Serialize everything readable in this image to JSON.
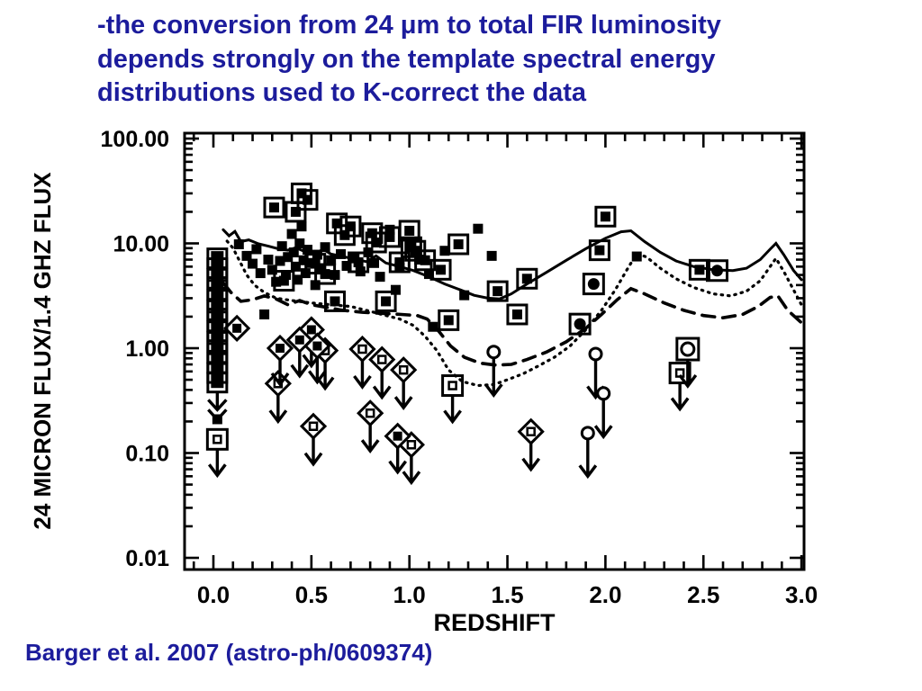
{
  "slide": {
    "title": "-the conversion from 24 μm to total FIR luminosity\ndepends strongly on the template spectral energy\ndistributions used to K-correct the data",
    "citation": "Barger et al. 2007 (astro-ph/0609374)",
    "text_color": "#1c1c9c",
    "background": "#ffffff"
  },
  "chart_data": {
    "type": "scatter",
    "title": "",
    "xlabel": "REDSHIFT",
    "ylabel": "24 MICRON FLUX/1.4 GHZ FLUX",
    "x_range": [
      -0.147,
      3.013
    ],
    "y_log_range": [
      0.0078,
      112
    ],
    "x_ticks": [
      0.0,
      0.5,
      1.0,
      1.5,
      2.0,
      2.5,
      3.0
    ],
    "x_tick_labels": [
      "0.0",
      "0.5",
      "1.0",
      "1.5",
      "2.0",
      "2.5",
      "3.0"
    ],
    "x_minor_step": 0.1,
    "y_ticks": [
      100,
      10,
      1,
      0.1,
      0.01
    ],
    "y_tick_labels": [
      "100.00",
      "10.00",
      "1.00",
      "0.10",
      "0.01"
    ],
    "grid": false,
    "legend": "none",
    "ink_color": "#000000",
    "series": [
      {
        "name": "filled-squares",
        "symbol": "filled_square",
        "points": [
          [
            0.13,
            9.8
          ],
          [
            0.17,
            7.6
          ],
          [
            0.2,
            6.4
          ],
          [
            0.22,
            8.8
          ],
          [
            0.24,
            5.2
          ],
          [
            0.26,
            2.1
          ],
          [
            0.28,
            7.0
          ],
          [
            0.3,
            5.6
          ],
          [
            0.32,
            4.3
          ],
          [
            0.34,
            6.8
          ],
          [
            0.35,
            9.4
          ],
          [
            0.37,
            5.0
          ],
          [
            0.38,
            7.4
          ],
          [
            0.4,
            12.3
          ],
          [
            0.41,
            8.2
          ],
          [
            0.42,
            6.0
          ],
          [
            0.43,
            4.5
          ],
          [
            0.44,
            10.0
          ],
          [
            0.45,
            14.5
          ],
          [
            0.46,
            6.9
          ],
          [
            0.47,
            5.2
          ],
          [
            0.48,
            8.7
          ],
          [
            0.5,
            6.5
          ],
          [
            0.52,
            4.0
          ],
          [
            0.53,
            7.8
          ],
          [
            0.55,
            5.8
          ],
          [
            0.57,
            9.2
          ],
          [
            0.6,
            6.9
          ],
          [
            0.62,
            5.0
          ],
          [
            0.65,
            7.9
          ],
          [
            0.68,
            6.1
          ],
          [
            0.72,
            7.2
          ],
          [
            0.75,
            5.4
          ],
          [
            0.79,
            8.2
          ],
          [
            0.82,
            6.5
          ],
          [
            0.85,
            4.8
          ],
          [
            0.9,
            13.5
          ],
          [
            0.93,
            3.6
          ],
          [
            0.95,
            5.9
          ],
          [
            1.05,
            7.0
          ],
          [
            1.1,
            5.1
          ],
          [
            1.12,
            1.6
          ],
          [
            1.18,
            8.5
          ],
          [
            1.28,
            3.2
          ],
          [
            1.35,
            13.8
          ],
          [
            1.42,
            7.6
          ],
          [
            2.16,
            7.5
          ],
          [
            0.02,
            0.21
          ]
        ]
      },
      {
        "name": "boxed-filled-squares",
        "symbol": "boxed_filled_square",
        "points": [
          [
            0.31,
            22
          ],
          [
            0.45,
            30
          ],
          [
            0.48,
            26
          ],
          [
            0.42,
            20
          ],
          [
            0.63,
            15.5
          ],
          [
            0.7,
            14.5
          ],
          [
            0.67,
            12.0
          ],
          [
            0.81,
            12.5
          ],
          [
            0.83,
            10.2
          ],
          [
            0.9,
            11.5
          ],
          [
            1.0,
            13.2
          ],
          [
            1.01,
            9.2
          ],
          [
            1.03,
            8.5
          ],
          [
            1.16,
            5.6
          ],
          [
            1.25,
            9.8
          ],
          [
            1.45,
            3.5
          ],
          [
            1.6,
            4.6
          ],
          [
            1.55,
            2.1
          ],
          [
            2.0,
            18.0
          ],
          [
            1.97,
            8.6
          ],
          [
            2.48,
            5.6
          ],
          [
            0.62,
            2.8
          ],
          [
            0.88,
            2.8
          ],
          [
            1.2,
            1.85
          ],
          [
            0.52,
            6.4
          ],
          [
            0.74,
            6.6
          ],
          [
            0.57,
            5.1
          ],
          [
            1.08,
            6.9
          ],
          [
            0.95,
            6.6
          ],
          [
            0.36,
            4.4
          ]
        ]
      },
      {
        "name": "boxed-filled-circles",
        "symbol": "boxed_filled_circle",
        "points": [
          [
            1.94,
            4.1
          ],
          [
            1.87,
            1.7
          ],
          [
            2.57,
            5.5
          ]
        ]
      },
      {
        "name": "diamond-upper-limits",
        "symbol": "diamond_limit",
        "points": [
          [
            0.33,
            0.46
          ],
          [
            0.51,
            0.18
          ],
          [
            0.57,
            0.95
          ],
          [
            0.76,
            0.98
          ],
          [
            0.8,
            0.24
          ],
          [
            0.86,
            0.78
          ],
          [
            1.01,
            0.12
          ],
          [
            1.62,
            0.16
          ],
          [
            0.97,
            0.62
          ]
        ]
      },
      {
        "name": "filled-diamonds",
        "symbol": "diamond_filled",
        "points": [
          [
            0.12,
            1.55
          ]
        ]
      },
      {
        "name": "filled-diamond-upper-limits",
        "symbol": "diamond_filled_limit",
        "points": [
          [
            0.5,
            1.5
          ],
          [
            0.44,
            1.2
          ],
          [
            0.94,
            0.145
          ],
          [
            0.34,
            1.0
          ],
          [
            0.53,
            1.05
          ]
        ]
      },
      {
        "name": "square-upper-limits",
        "symbol": "square_limit",
        "points": [
          [
            1.22,
            0.44
          ],
          [
            2.38,
            0.58
          ],
          [
            0.02,
            0.135
          ]
        ]
      },
      {
        "name": "boxed-circle-upper-limits",
        "symbol": "boxed_circle_limit",
        "points": [
          [
            2.42,
            0.98
          ]
        ]
      },
      {
        "name": "circle-upper-limits",
        "symbol": "circle_limit",
        "points": [
          [
            1.43,
            0.92
          ],
          [
            1.95,
            0.88
          ],
          [
            1.99,
            0.37
          ],
          [
            1.91,
            0.155
          ]
        ]
      }
    ],
    "zero_column": {
      "z": 0.02,
      "r_values": [
        7.2,
        5.8,
        4.6,
        3.6,
        2.9,
        2.3,
        1.8,
        1.45,
        1.15,
        0.9,
        0.72,
        0.58,
        0.47
      ],
      "arrow_from_r": 0.45
    },
    "curves": [
      {
        "name": "solid-template-track",
        "style": "solid",
        "points": [
          [
            0.05,
            13.5
          ],
          [
            0.08,
            11.8
          ],
          [
            0.11,
            13.0
          ],
          [
            0.14,
            10.4
          ],
          [
            0.18,
            10.8
          ],
          [
            0.23,
            9.9
          ],
          [
            0.28,
            9.4
          ],
          [
            0.33,
            8.9
          ],
          [
            0.38,
            8.6
          ],
          [
            0.42,
            9.1
          ],
          [
            0.47,
            8.3
          ],
          [
            0.52,
            8.0
          ],
          [
            0.56,
            8.8
          ],
          [
            0.6,
            7.9
          ],
          [
            0.66,
            7.5
          ],
          [
            0.72,
            7.1
          ],
          [
            0.78,
            6.7
          ],
          [
            0.83,
            7.6
          ],
          [
            0.88,
            6.5
          ],
          [
            0.95,
            6.0
          ],
          [
            1.02,
            5.5
          ],
          [
            1.1,
            4.8
          ],
          [
            1.18,
            4.1
          ],
          [
            1.26,
            3.6
          ],
          [
            1.33,
            3.2
          ],
          [
            1.4,
            3.0
          ],
          [
            1.46,
            2.95
          ],
          [
            1.52,
            3.3
          ],
          [
            1.6,
            4.1
          ],
          [
            1.7,
            5.3
          ],
          [
            1.8,
            6.9
          ],
          [
            1.9,
            8.9
          ],
          [
            2.0,
            11.2
          ],
          [
            2.08,
            12.9
          ],
          [
            2.13,
            13.2
          ],
          [
            2.2,
            10.4
          ],
          [
            2.28,
            8.2
          ],
          [
            2.36,
            6.8
          ],
          [
            2.45,
            6.0
          ],
          [
            2.55,
            5.6
          ],
          [
            2.65,
            5.5
          ],
          [
            2.72,
            5.8
          ],
          [
            2.79,
            7.0
          ],
          [
            2.84,
            8.8
          ],
          [
            2.87,
            10.0
          ],
          [
            2.91,
            7.8
          ],
          [
            2.96,
            5.5
          ],
          [
            3.0,
            4.5
          ]
        ]
      },
      {
        "name": "dotted-template-track",
        "style": "dotted",
        "points": [
          [
            0.07,
            10.5
          ],
          [
            0.1,
            9.0
          ],
          [
            0.13,
            7.0
          ],
          [
            0.17,
            5.0
          ],
          [
            0.21,
            4.0
          ],
          [
            0.26,
            3.4
          ],
          [
            0.32,
            3.0
          ],
          [
            0.4,
            2.85
          ],
          [
            0.5,
            2.7
          ],
          [
            0.6,
            2.6
          ],
          [
            0.7,
            2.5
          ],
          [
            0.8,
            2.25
          ],
          [
            0.88,
            2.05
          ],
          [
            0.95,
            1.9
          ],
          [
            1.02,
            1.65
          ],
          [
            1.08,
            1.3
          ],
          [
            1.14,
            0.95
          ],
          [
            1.2,
            0.62
          ],
          [
            1.27,
            0.48
          ],
          [
            1.35,
            0.44
          ],
          [
            1.43,
            0.45
          ],
          [
            1.5,
            0.5
          ],
          [
            1.58,
            0.57
          ],
          [
            1.66,
            0.68
          ],
          [
            1.74,
            0.82
          ],
          [
            1.82,
            1.05
          ],
          [
            1.9,
            1.5
          ],
          [
            1.98,
            2.3
          ],
          [
            2.05,
            3.6
          ],
          [
            2.11,
            5.6
          ],
          [
            2.16,
            8.0
          ],
          [
            2.21,
            7.4
          ],
          [
            2.28,
            5.8
          ],
          [
            2.36,
            4.6
          ],
          [
            2.45,
            3.8
          ],
          [
            2.55,
            3.3
          ],
          [
            2.64,
            3.15
          ],
          [
            2.72,
            3.5
          ],
          [
            2.79,
            4.4
          ],
          [
            2.84,
            6.0
          ],
          [
            2.87,
            7.2
          ],
          [
            2.91,
            5.4
          ],
          [
            2.96,
            3.6
          ],
          [
            3.0,
            2.6
          ]
        ]
      },
      {
        "name": "dashed-template-track",
        "style": "dashed",
        "points": [
          [
            0.05,
            4.2
          ],
          [
            0.09,
            3.4
          ],
          [
            0.14,
            2.8
          ],
          [
            0.2,
            2.9
          ],
          [
            0.26,
            3.15
          ],
          [
            0.32,
            2.95
          ],
          [
            0.38,
            2.6
          ],
          [
            0.44,
            2.85
          ],
          [
            0.5,
            2.6
          ],
          [
            0.58,
            2.45
          ],
          [
            0.66,
            2.3
          ],
          [
            0.76,
            2.2
          ],
          [
            0.86,
            2.15
          ],
          [
            0.96,
            2.1
          ],
          [
            1.04,
            2.05
          ],
          [
            1.09,
            1.9
          ],
          [
            1.15,
            1.45
          ],
          [
            1.21,
            1.05
          ],
          [
            1.28,
            0.82
          ],
          [
            1.36,
            0.72
          ],
          [
            1.44,
            0.69
          ],
          [
            1.52,
            0.7
          ],
          [
            1.6,
            0.78
          ],
          [
            1.7,
            0.92
          ],
          [
            1.8,
            1.15
          ],
          [
            1.9,
            1.55
          ],
          [
            1.98,
            2.1
          ],
          [
            2.06,
            2.9
          ],
          [
            2.13,
            3.7
          ],
          [
            2.2,
            3.3
          ],
          [
            2.3,
            2.7
          ],
          [
            2.4,
            2.3
          ],
          [
            2.5,
            2.05
          ],
          [
            2.6,
            1.95
          ],
          [
            2.7,
            2.1
          ],
          [
            2.78,
            2.5
          ],
          [
            2.84,
            3.05
          ],
          [
            2.88,
            3.15
          ],
          [
            2.93,
            2.3
          ],
          [
            3.0,
            1.75
          ]
        ]
      }
    ]
  }
}
